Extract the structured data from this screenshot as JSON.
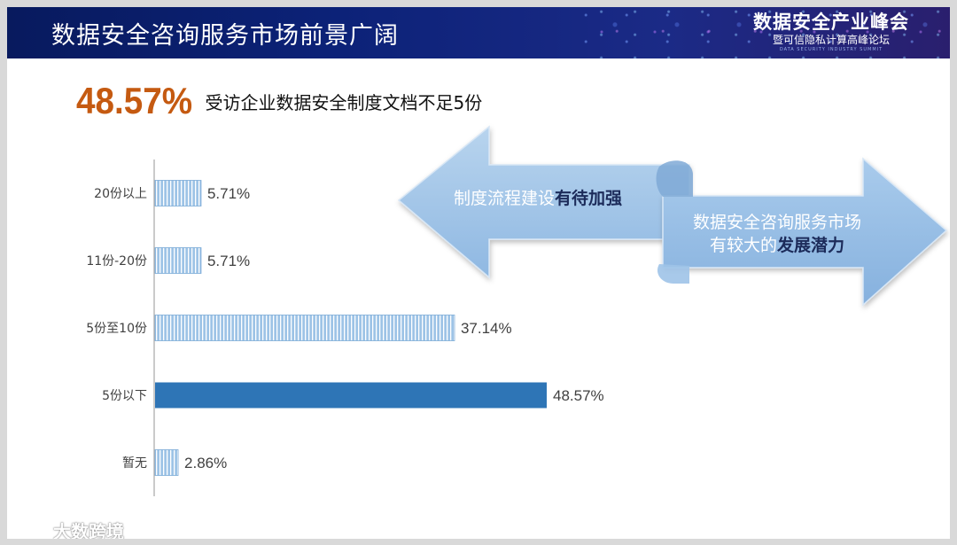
{
  "header": {
    "title": "数据安全咨询服务市场前景广阔",
    "brand_main": "数据安全产业峰会",
    "brand_sub": "暨可信隐私计算高峰论坛",
    "brand_en": "DATA SECURITY INDUSTRY SUMMIT"
  },
  "headline": {
    "value": "48.57%",
    "text": "受访企业数据安全制度文档不足5份",
    "color": "#c55a11"
  },
  "arrows": {
    "left": {
      "prefix": "制度流程建设",
      "bold": "有待加强"
    },
    "right": {
      "line1": "数据安全咨询服务市场",
      "line2_prefix": "有较大的",
      "line2_bold": "发展潜力"
    }
  },
  "watermark": {
    "text": "大数跨境",
    "icon": "brand-logo-icon"
  },
  "chart_data": {
    "type": "bar",
    "orientation": "horizontal",
    "categories": [
      "20份以上",
      "11份-20份",
      "5份至10份",
      "5份以下",
      "暂无"
    ],
    "values": [
      5.71,
      5.71,
      37.14,
      48.57,
      2.86
    ],
    "labels": [
      "5.71%",
      "5.71%",
      "37.14%",
      "48.57%",
      "2.86%"
    ],
    "highlight_index": 3,
    "xlim": [
      0,
      60
    ],
    "colors": {
      "bar": "#9dc3e6",
      "stripe": "#ffffff",
      "highlight": "#2e75b6",
      "axis": "#a6a6a6"
    },
    "grid": false
  }
}
